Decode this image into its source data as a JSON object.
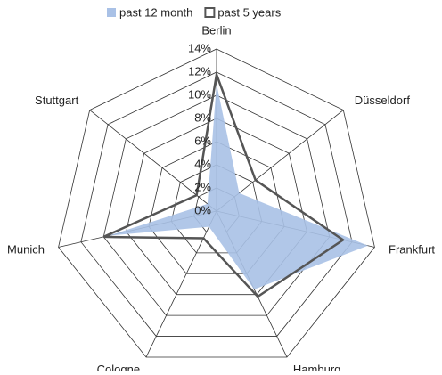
{
  "chart_data": {
    "type": "radar",
    "categories": [
      "Berlin",
      "Düsseldorf",
      "Frankfurt",
      "Hamburg",
      "Cologne",
      "Munich",
      "Stuttgart"
    ],
    "series": [
      {
        "name": "past 12 month",
        "color": "#a9c1e6",
        "values": [
          11,
          2.5,
          13.4,
          7.5,
          1.5,
          9.5,
          1
        ]
      },
      {
        "name": "past 5 years",
        "color": "#555555",
        "values": [
          11.8,
          4.3,
          11.2,
          8.2,
          2.6,
          10,
          2.2
        ]
      }
    ],
    "ylim": [
      0,
      14
    ],
    "yticks": [
      {
        "value": 0,
        "label": "0%"
      },
      {
        "value": 2,
        "label": "2%"
      },
      {
        "value": 4,
        "label": "4%"
      },
      {
        "value": 6,
        "label": "6%"
      },
      {
        "value": 8,
        "label": "8%"
      },
      {
        "value": 10,
        "label": "10%"
      },
      {
        "value": 12,
        "label": "12%"
      },
      {
        "value": 14,
        "label": "14%"
      }
    ],
    "grid": true,
    "legend": "top"
  }
}
